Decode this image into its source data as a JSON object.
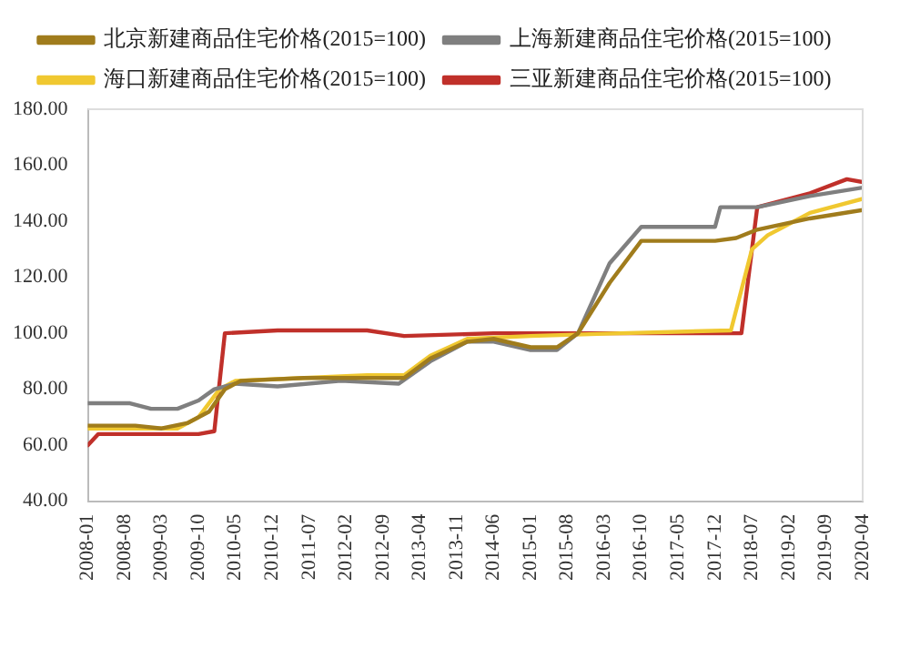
{
  "chart_data": {
    "type": "line",
    "legend": "top",
    "grid": false,
    "marker": "none",
    "line_style": "solid",
    "xlim": [
      "2008-01",
      "2020-04"
    ],
    "xticks": [
      "2008-01",
      "2008-08",
      "2009-03",
      "2009-10",
      "2010-05",
      "2010-12",
      "2011-07",
      "2012-02",
      "2012-09",
      "2013-04",
      "2013-11",
      "2014-06",
      "2015-01",
      "2015-08",
      "2016-03",
      "2016-10",
      "2017-05",
      "2017-12",
      "2018-07",
      "2019-02",
      "2019-09",
      "2020-04"
    ],
    "ylim": [
      40,
      180
    ],
    "yticks": [
      {
        "value": 40,
        "label": "40.00"
      },
      {
        "value": 60,
        "label": "60.00"
      },
      {
        "value": 80,
        "label": "80.00"
      },
      {
        "value": 100,
        "label": "100.00"
      },
      {
        "value": 120,
        "label": "120.00"
      },
      {
        "value": 140,
        "label": "140.00"
      },
      {
        "value": 160,
        "label": "160.00"
      },
      {
        "value": 180,
        "label": "180.00"
      }
    ],
    "series": [
      {
        "name": "北京新建商品住宅价格(2015=100)",
        "color": "#a07c1c",
        "x": [
          "2008-01",
          "2008-10",
          "2009-03",
          "2009-08",
          "2009-12",
          "2010-03",
          "2010-06",
          "2011-06",
          "2012-06",
          "2013-01",
          "2013-06",
          "2014-01",
          "2014-06",
          "2015-01",
          "2015-06",
          "2015-10",
          "2016-04",
          "2016-10",
          "2017-12",
          "2018-04",
          "2018-08",
          "2019-06",
          "2020-04"
        ],
        "values": [
          67,
          67,
          66,
          68,
          72,
          80,
          83,
          84,
          84,
          84,
          91,
          97,
          98,
          95,
          95,
          100,
          118,
          133,
          133,
          134,
          137,
          141,
          144
        ]
      },
      {
        "name": "上海新建商品住宅价格(2015=100)",
        "color": "#7f7f7f",
        "x": [
          "2008-01",
          "2008-09",
          "2009-01",
          "2009-06",
          "2009-10",
          "2010-01",
          "2010-05",
          "2011-01",
          "2012-01",
          "2012-12",
          "2013-06",
          "2014-01",
          "2014-06",
          "2015-01",
          "2015-06",
          "2015-10",
          "2016-04",
          "2016-10",
          "2017-12",
          "2018-01",
          "2018-08",
          "2019-06",
          "2020-04"
        ],
        "values": [
          75,
          75,
          73,
          73,
          76,
          80,
          82,
          81,
          83,
          82,
          90,
          97,
          97,
          94,
          94,
          100,
          125,
          138,
          138,
          145,
          145,
          149,
          152
        ]
      },
      {
        "name": "海口新建商品住宅价格(2015=100)",
        "color": "#f0c830",
        "x": [
          "2008-01",
          "2008-10",
          "2009-06",
          "2009-10",
          "2010-02",
          "2010-05",
          "2011-06",
          "2012-06",
          "2013-01",
          "2013-06",
          "2014-01",
          "2015-01",
          "2016-06",
          "2018-03",
          "2018-07",
          "2018-10",
          "2019-06",
          "2020-04"
        ],
        "values": [
          66,
          66,
          66,
          70,
          80,
          83,
          84,
          85,
          85,
          92,
          98,
          99,
          100,
          101,
          130,
          135,
          143,
          148
        ]
      },
      {
        "name": "三亚新建商品住宅价格(2015=100)",
        "color": "#c0302a",
        "x": [
          "2008-01",
          "2008-03",
          "2009-10",
          "2010-01",
          "2010-03",
          "2011-01",
          "2012-06",
          "2013-01",
          "2014-06",
          "2018-05",
          "2018-08",
          "2019-06",
          "2020-01",
          "2020-04"
        ],
        "values": [
          60,
          64,
          64,
          65,
          100,
          101,
          101,
          99,
          100,
          100,
          145,
          150,
          155,
          154
        ]
      }
    ]
  }
}
